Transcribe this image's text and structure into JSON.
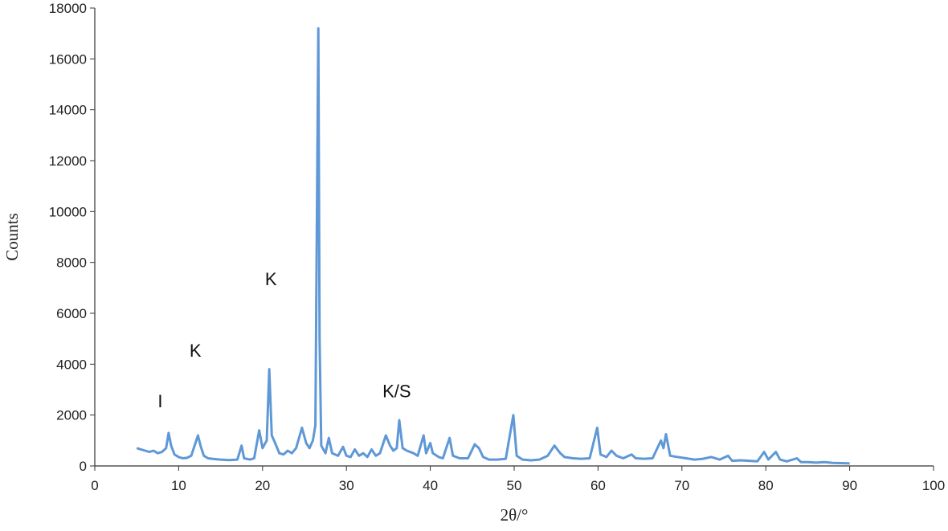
{
  "chart_data": {
    "type": "line",
    "xlabel": "2θ/°",
    "ylabel": "Counts",
    "xlim": [
      0,
      100
    ],
    "xticks": [
      0,
      10,
      20,
      30,
      40,
      50,
      60,
      70,
      80,
      90,
      100
    ],
    "ylim": [
      0,
      18000
    ],
    "yticks": [
      0,
      2000,
      4000,
      6000,
      8000,
      10000,
      12000,
      14000,
      16000,
      18000
    ],
    "grid": false,
    "annotations": [
      {
        "text": "I",
        "x": 7.8,
        "y": 2300
      },
      {
        "text": "K",
        "x": 12.0,
        "y": 4300
      },
      {
        "text": "K",
        "x": 21.0,
        "y": 7100
      },
      {
        "text": "K/S",
        "x": 36.0,
        "y": 2700
      }
    ],
    "x": [
      5,
      5.5,
      6,
      6.5,
      7,
      7.5,
      8,
      8.5,
      8.8,
      9.1,
      9.5,
      10,
      10.5,
      11,
      11.5,
      12,
      12.3,
      12.6,
      13,
      13.5,
      14,
      15,
      16,
      17,
      17.5,
      17.8,
      18.5,
      19,
      19.6,
      20,
      20.5,
      20.8,
      21.1,
      21.5,
      22,
      22.5,
      23,
      23.5,
      24,
      24.7,
      25.2,
      25.6,
      26,
      26.3,
      26.5,
      26.65,
      26.8,
      27,
      27.5,
      27.9,
      28.3,
      29,
      29.6,
      30,
      30.5,
      31,
      31.5,
      32,
      32.5,
      33,
      33.5,
      34,
      34.7,
      35.2,
      35.6,
      36,
      36.3,
      36.7,
      37.2,
      38,
      38.5,
      39.2,
      39.5,
      40,
      40.3,
      41,
      41.5,
      42.3,
      42.7,
      43.5,
      44.5,
      45.3,
      45.8,
      46.3,
      47,
      48,
      49,
      49.9,
      50.3,
      51,
      52,
      53,
      54,
      54.8,
      55.5,
      56,
      57,
      58,
      59,
      59.9,
      60.3,
      61,
      61.6,
      62.2,
      63,
      64,
      64.5,
      65.5,
      66.5,
      67.5,
      67.8,
      68.1,
      68.6,
      69.5,
      70.5,
      71.5,
      72.5,
      73.5,
      74.5,
      75.5,
      76,
      77,
      78,
      79,
      79.8,
      80.3,
      81.2,
      81.7,
      82.5,
      83.7,
      84.2,
      85,
      86,
      87,
      88,
      89,
      90
    ],
    "series": [
      {
        "color": "#5f98d6",
        "values": [
          700,
          650,
          600,
          550,
          600,
          500,
          550,
          700,
          1300,
          800,
          450,
          350,
          300,
          320,
          400,
          900,
          1200,
          800,
          400,
          300,
          280,
          250,
          230,
          250,
          800,
          300,
          250,
          300,
          1400,
          700,
          1000,
          3800,
          1200,
          900,
          500,
          450,
          600,
          500,
          700,
          1500,
          900,
          700,
          1000,
          1600,
          10600,
          17200,
          5000,
          800,
          500,
          1100,
          500,
          400,
          750,
          400,
          350,
          650,
          400,
          500,
          350,
          650,
          400,
          500,
          1200,
          800,
          600,
          700,
          1800,
          700,
          600,
          500,
          400,
          1200,
          500,
          900,
          500,
          350,
          300,
          1100,
          400,
          300,
          300,
          850,
          700,
          350,
          250,
          250,
          280,
          2000,
          400,
          250,
          220,
          250,
          400,
          800,
          500,
          350,
          300,
          280,
          300,
          1500,
          450,
          350,
          600,
          400,
          300,
          450,
          300,
          280,
          300,
          1000,
          700,
          1250,
          400,
          350,
          300,
          250,
          280,
          350,
          250,
          400,
          200,
          220,
          200,
          180,
          550,
          250,
          550,
          250,
          180,
          300,
          150,
          150,
          130,
          150,
          120,
          110,
          100
        ]
      }
    ]
  }
}
